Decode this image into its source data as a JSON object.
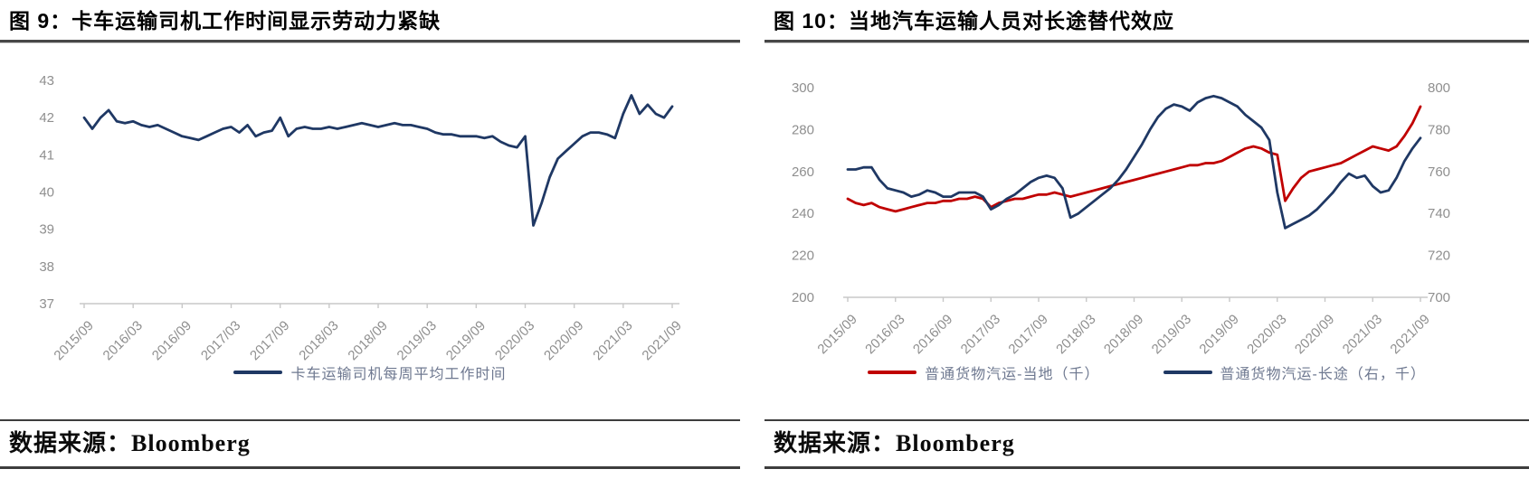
{
  "figures": [
    {
      "title": "图 9：卡车运输司机工作时间显示劳动力紧缺",
      "source": "数据来源：Bloomberg"
    },
    {
      "title": "图 10：当地汽车运输人员对长途替代效应",
      "source": "数据来源：Bloomberg"
    }
  ],
  "colors": {
    "navy": "#1F3864",
    "red": "#C00000",
    "axis_line": "#c8c8c8",
    "tick_text": "#8f8f8f"
  },
  "chart_data": [
    {
      "type": "line",
      "title": "图 9：卡车运输司机工作时间显示劳动力紧缺",
      "x_frequency": "monthly",
      "x_range": [
        "2015/09",
        "2021/09"
      ],
      "x_tick_labels": [
        "2015/09",
        "2016/03",
        "2016/09",
        "2017/03",
        "2017/09",
        "2018/03",
        "2018/09",
        "2019/03",
        "2019/09",
        "2020/03",
        "2020/09",
        "2021/03",
        "2021/09"
      ],
      "grid": false,
      "legend_position": "bottom",
      "axes": {
        "left": {
          "min": 37,
          "max": 43,
          "ticks": [
            37,
            38,
            39,
            40,
            41,
            42,
            43
          ]
        }
      },
      "series": [
        {
          "name": "卡车运输司机每周平均工作时间",
          "color": "#1F3864",
          "axis": "left",
          "values": [
            42.0,
            41.7,
            42.0,
            42.2,
            41.9,
            41.85,
            41.9,
            41.8,
            41.75,
            41.8,
            41.7,
            41.6,
            41.5,
            41.45,
            41.4,
            41.5,
            41.6,
            41.7,
            41.75,
            41.6,
            41.8,
            41.5,
            41.6,
            41.65,
            42.0,
            41.5,
            41.7,
            41.75,
            41.7,
            41.7,
            41.75,
            41.7,
            41.75,
            41.8,
            41.85,
            41.8,
            41.75,
            41.8,
            41.85,
            41.8,
            41.8,
            41.75,
            41.7,
            41.6,
            41.55,
            41.55,
            41.5,
            41.5,
            41.5,
            41.45,
            41.5,
            41.35,
            41.25,
            41.2,
            41.5,
            39.1,
            39.7,
            40.4,
            40.9,
            41.1,
            41.3,
            41.5,
            41.6,
            41.6,
            41.55,
            41.45,
            42.1,
            42.6,
            42.1,
            42.35,
            42.1,
            42.0,
            42.3
          ]
        }
      ]
    },
    {
      "type": "line",
      "title": "图 10：当地汽车运输人员对长途替代效应",
      "x_frequency": "monthly",
      "x_range": [
        "2015/09",
        "2021/09"
      ],
      "x_tick_labels": [
        "2015/09",
        "2016/03",
        "2016/09",
        "2017/03",
        "2017/09",
        "2018/03",
        "2018/09",
        "2019/03",
        "2019/09",
        "2020/03",
        "2020/09",
        "2021/03",
        "2021/09"
      ],
      "grid": false,
      "legend_position": "bottom",
      "axes": {
        "left": {
          "min": 200,
          "max": 300,
          "ticks": [
            200,
            220,
            240,
            260,
            280,
            300
          ]
        },
        "right": {
          "min": 700,
          "max": 800,
          "ticks": [
            700,
            720,
            740,
            760,
            780,
            800
          ]
        }
      },
      "series": [
        {
          "name": "普通货物汽运-当地（千）",
          "color": "#C00000",
          "axis": "left",
          "values": [
            247,
            245,
            244,
            245,
            243,
            242,
            241,
            242,
            243,
            244,
            245,
            245,
            246,
            246,
            247,
            247,
            248,
            247,
            243,
            245,
            246,
            247,
            247,
            248,
            249,
            249,
            250,
            249,
            248,
            249,
            250,
            251,
            252,
            253,
            254,
            255,
            256,
            257,
            258,
            259,
            260,
            261,
            262,
            263,
            263,
            264,
            264,
            265,
            267,
            269,
            271,
            272,
            271,
            269,
            268,
            246,
            252,
            257,
            260,
            261,
            262,
            263,
            264,
            266,
            268,
            270,
            272,
            271,
            270,
            272,
            277,
            283,
            291
          ]
        },
        {
          "name": "普通货物汽运-长途（右，千）",
          "color": "#1F3864",
          "axis": "right",
          "values": [
            761,
            761,
            762,
            762,
            756,
            752,
            751,
            750,
            748,
            749,
            751,
            750,
            748,
            748,
            750,
            750,
            750,
            748,
            742,
            744,
            747,
            749,
            752,
            755,
            757,
            758,
            757,
            752,
            738,
            740,
            743,
            746,
            749,
            752,
            756,
            761,
            767,
            773,
            780,
            786,
            790,
            792,
            791,
            789,
            793,
            795,
            796,
            795,
            793,
            791,
            787,
            784,
            781,
            775,
            750,
            733,
            735,
            737,
            739,
            742,
            746,
            750,
            755,
            759,
            757,
            758,
            753,
            750,
            751,
            757,
            765,
            771,
            776
          ]
        }
      ]
    }
  ]
}
